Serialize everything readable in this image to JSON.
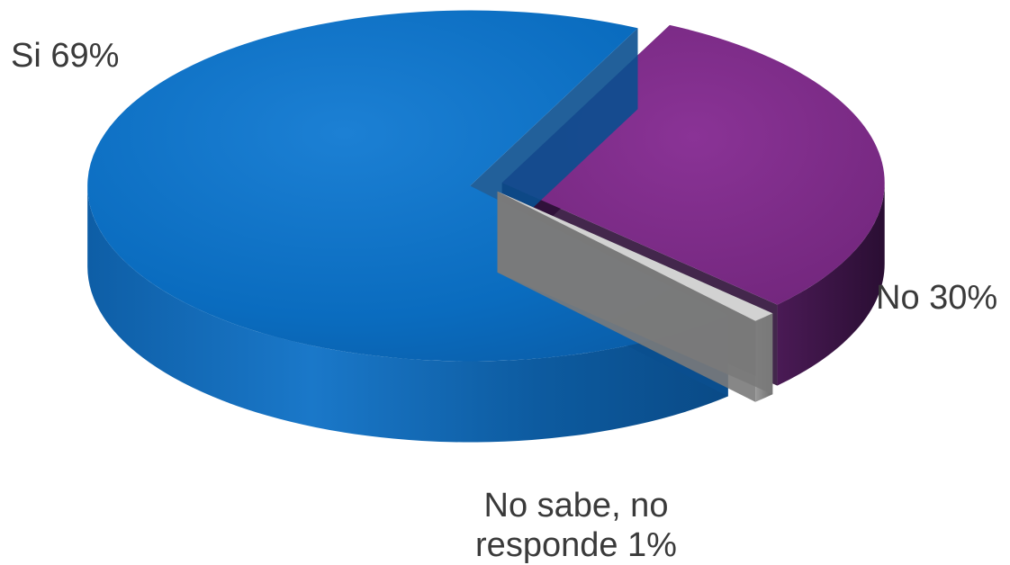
{
  "chart_data": {
    "type": "pie",
    "style": "3d-exploded",
    "slices": [
      {
        "label": "Si",
        "value": 69,
        "display": "Si 69%",
        "color": "#0a6fc2",
        "side_color": "#0b5fa8"
      },
      {
        "label": "No",
        "value": 30,
        "display": "No 30%",
        "color": "#7b2a85",
        "side_color": "#3e1747"
      },
      {
        "label": "No sabe, no responde",
        "value": 1,
        "display_lines": [
          "No sabe, no",
          "responde 1%"
        ],
        "color": "#c8c8c8",
        "side_color": "#8a8a8a"
      }
    ]
  }
}
